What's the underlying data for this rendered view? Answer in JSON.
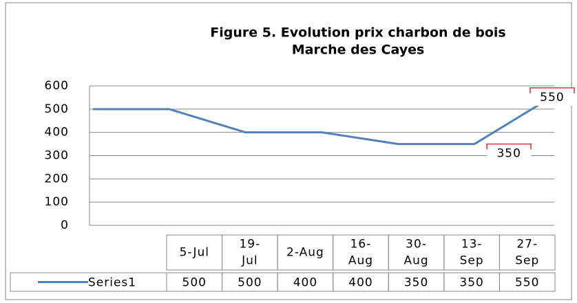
{
  "chart_data": {
    "type": "line",
    "title": [
      "Figure 5. Evolution prix charbon de bois",
      "Marche des Cayes"
    ],
    "categories": [
      "5-Jul",
      "19-Jul",
      "2-Aug",
      "16-Aug",
      "30-Aug",
      "13-Sep",
      "27-Sep"
    ],
    "series": [
      {
        "name": "Series1",
        "color": "#4f81bd",
        "values": [
          500,
          500,
          400,
          400,
          350,
          350,
          550
        ]
      }
    ],
    "ylim": [
      0,
      600
    ],
    "yticks": [
      0,
      100,
      200,
      300,
      400,
      500,
      600
    ],
    "grid": true,
    "data_labels": [
      5,
      6
    ]
  }
}
